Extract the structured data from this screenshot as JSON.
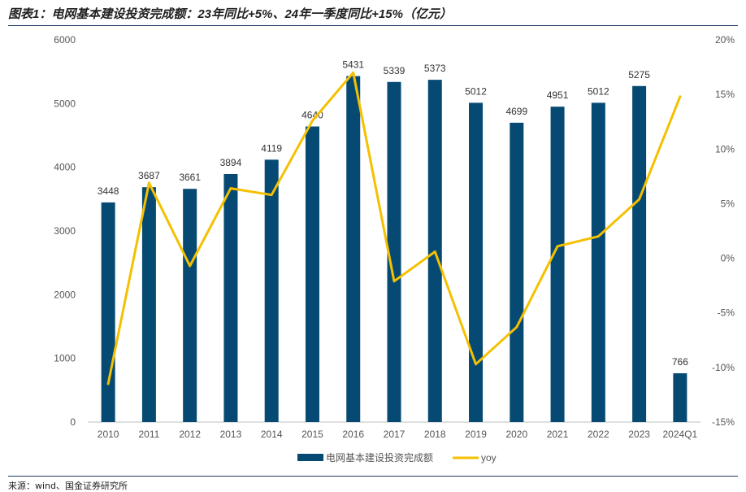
{
  "header": {
    "title": "图表1：电网基本建设投资完成额：23年同比+5%、24年一季度同比+15%（亿元）"
  },
  "footer": {
    "source": "来源：wind、国金证券研究所"
  },
  "chart_data": {
    "type": "bar",
    "title": "图表1：电网基本建设投资完成额：23年同比+5%、24年一季度同比+15%（亿元）",
    "categories": [
      "2010",
      "2011",
      "2012",
      "2013",
      "2014",
      "2015",
      "2016",
      "2017",
      "2018",
      "2019",
      "2020",
      "2021",
      "2022",
      "2023",
      "2024Q1"
    ],
    "series": [
      {
        "name": "电网基本建设投资完成额",
        "type": "bar",
        "axis": "left",
        "color": "#064a73",
        "values": [
          3448,
          3687,
          3661,
          3894,
          4119,
          4640,
          5431,
          5339,
          5373,
          5012,
          4699,
          4951,
          5012,
          5275,
          766
        ]
      },
      {
        "name": "yoy",
        "type": "line",
        "axis": "right",
        "color": "#f5c000",
        "values": [
          -11.5,
          6.9,
          -0.7,
          6.4,
          5.8,
          12.6,
          17.0,
          -2.1,
          0.6,
          -9.7,
          -6.3,
          1.1,
          2.0,
          5.4,
          14.8
        ]
      }
    ],
    "y_left": {
      "min": 0,
      "max": 6000,
      "ticks": [
        "0",
        "1000",
        "2000",
        "3000",
        "4000",
        "5000",
        "6000"
      ]
    },
    "y_right": {
      "min": -15,
      "max": 20,
      "ticks": [
        "-15%",
        "-10%",
        "-5%",
        "0%",
        "5%",
        "10%",
        "15%",
        "20%"
      ]
    },
    "legend": {
      "position": "bottom"
    },
    "grid": false
  }
}
